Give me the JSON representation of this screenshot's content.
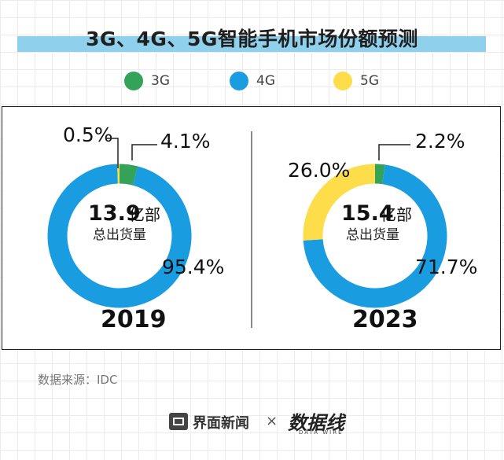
{
  "title": "3G、4G、5G智能手机市场份额预测",
  "legend": [
    {
      "label": "3G",
      "color": "#33a35a"
    },
    {
      "label": "4G",
      "color": "#1a9ce0"
    },
    {
      "label": "5G",
      "color": "#fddd4a"
    }
  ],
  "chart_data": [
    {
      "type": "pie",
      "style": "donut",
      "year": "2019",
      "total_value": "13.9",
      "total_unit": "亿部",
      "total_label": "总出货量",
      "categories": [
        "3G",
        "4G",
        "5G"
      ],
      "values": [
        4.1,
        95.4,
        0.5
      ],
      "labels": [
        "4.1%",
        "95.4%",
        "0.5%"
      ],
      "colors": [
        "#33a35a",
        "#1a9ce0",
        "#fddd4a"
      ]
    },
    {
      "type": "pie",
      "style": "donut",
      "year": "2023",
      "total_value": "15.4",
      "total_unit": "亿部",
      "total_label": "总出货量",
      "categories": [
        "3G",
        "4G",
        "5G"
      ],
      "values": [
        2.2,
        71.7,
        26.0
      ],
      "labels": [
        "2.2%",
        "71.7%",
        "26.0%"
      ],
      "colors": [
        "#33a35a",
        "#1a9ce0",
        "#fddd4a"
      ]
    }
  ],
  "source": "数据来源：IDC",
  "footer": {
    "brand": "界面新闻",
    "separator": "×",
    "partner": "数据线",
    "partner_sub": "DATA WIRE"
  }
}
